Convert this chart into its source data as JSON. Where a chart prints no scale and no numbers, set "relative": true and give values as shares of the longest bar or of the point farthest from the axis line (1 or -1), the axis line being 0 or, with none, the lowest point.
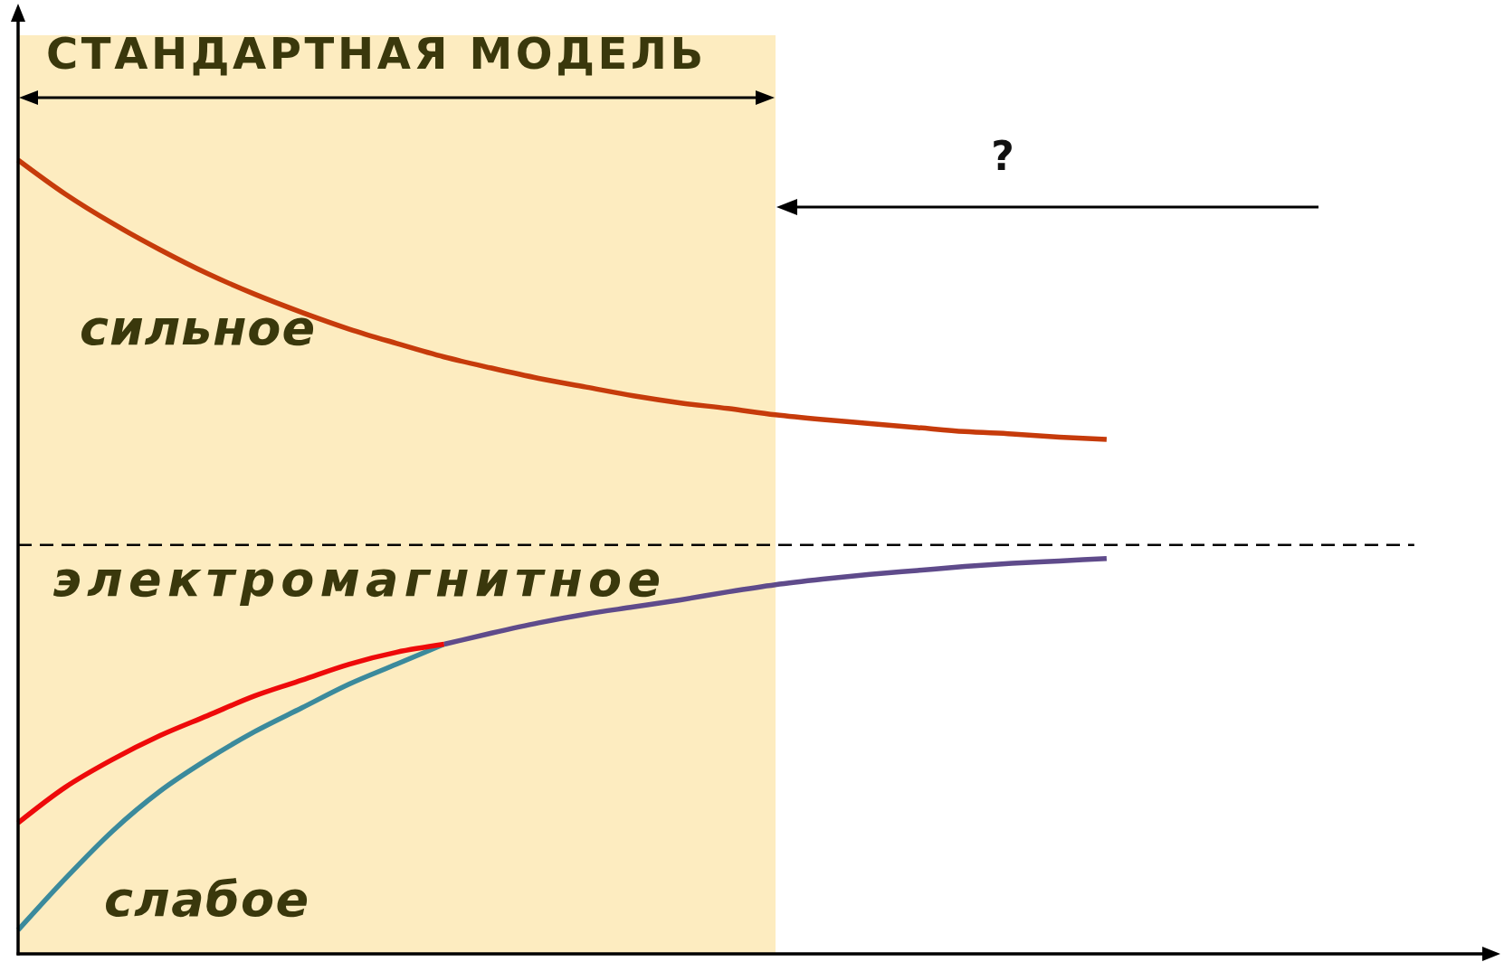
{
  "chart_data": {
    "type": "line",
    "relative": true,
    "line_style": "solid",
    "categories": [
      null,
      null,
      null,
      null,
      null,
      null,
      null,
      null,
      null,
      null,
      null,
      null,
      null,
      null,
      null,
      null,
      null,
      null,
      null,
      null,
      null,
      null,
      null,
      null,
      null,
      null,
      null,
      null,
      null,
      null
    ],
    "series": [
      {
        "name": "сильное",
        "color": "#c63b0b",
        "values": [
          1,
          0.957,
          0.92,
          0.887,
          0.857,
          0.831,
          0.808,
          0.787,
          0.769,
          0.752,
          0.738,
          0.725,
          0.714,
          0.703,
          0.694,
          0.687,
          0.679,
          0.673,
          0.668,
          0.663,
          0.658,
          0.655,
          0.651,
          0.648,
          null,
          null,
          null,
          null,
          null,
          null
        ]
      },
      {
        "name": "электромагнитное",
        "color": "#ee0a0a",
        "values": [
          0.165,
          0.21,
          0.245,
          0.275,
          0.3,
          0.325,
          0.345,
          0.365,
          0.38,
          0.39,
          null,
          null,
          null,
          null,
          null,
          null,
          null,
          null,
          null,
          null,
          null,
          null,
          null,
          null,
          null,
          null,
          null,
          null,
          null,
          null
        ]
      },
      {
        "name": "слабое",
        "color": "#3b8a9c",
        "values": [
          0.03,
          0.095,
          0.155,
          0.205,
          0.245,
          0.28,
          0.31,
          0.34,
          0.365,
          0.39,
          null,
          null,
          null,
          null,
          null,
          null,
          null,
          null,
          null,
          null,
          null,
          null,
          null,
          null,
          null,
          null,
          null,
          null,
          null,
          null
        ]
      },
      {
        "color": "#5f4b8b",
        "values": [
          null,
          null,
          null,
          null,
          null,
          null,
          null,
          null,
          null,
          0.39,
          0.404,
          0.417,
          0.428,
          0.437,
          0.446,
          0.456,
          0.465,
          0.472,
          0.478,
          0.483,
          0.488,
          0.492,
          0.495,
          0.498,
          null,
          null,
          null,
          null,
          null,
          null
        ]
      }
    ],
    "ref_lines": [
      {
        "axis": "y",
        "value": 0.515,
        "color": "#000000",
        "line_style": "dashed"
      }
    ],
    "annotations": [
      "СТАНДАРТНАЯ МОДЕЛЬ",
      "?"
    ]
  }
}
